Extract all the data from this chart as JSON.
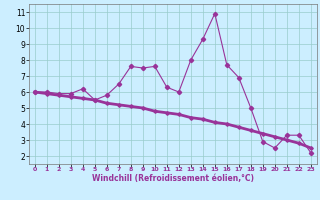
{
  "x": [
    0,
    1,
    2,
    3,
    4,
    5,
    6,
    7,
    8,
    9,
    10,
    11,
    12,
    13,
    14,
    15,
    16,
    17,
    18,
    19,
    20,
    21,
    22,
    23
  ],
  "line1": [
    6.0,
    6.0,
    5.9,
    5.9,
    6.2,
    5.5,
    5.8,
    6.5,
    7.6,
    7.5,
    7.6,
    6.3,
    6.0,
    8.0,
    9.3,
    10.9,
    7.7,
    6.9,
    5.0,
    2.9,
    2.5,
    3.3,
    3.3,
    2.2
  ],
  "line2": [
    6.0,
    5.9,
    5.8,
    5.7,
    5.6,
    5.5,
    5.3,
    5.2,
    5.1,
    5.0,
    4.8,
    4.7,
    4.6,
    4.4,
    4.3,
    4.1,
    4.0,
    3.8,
    3.6,
    3.4,
    3.2,
    3.0,
    2.8,
    2.5
  ],
  "line_color": "#993399",
  "bg_color": "#cceeff",
  "grid_color": "#99cccc",
  "xlabel": "Windchill (Refroidissement éolien,°C)",
  "xlim": [
    -0.5,
    23.5
  ],
  "ylim": [
    1.5,
    11.5
  ],
  "yticks": [
    2,
    3,
    4,
    5,
    6,
    7,
    8,
    9,
    10,
    11
  ],
  "xticks": [
    0,
    1,
    2,
    3,
    4,
    5,
    6,
    7,
    8,
    9,
    10,
    11,
    12,
    13,
    14,
    15,
    16,
    17,
    18,
    19,
    20,
    21,
    22,
    23
  ]
}
